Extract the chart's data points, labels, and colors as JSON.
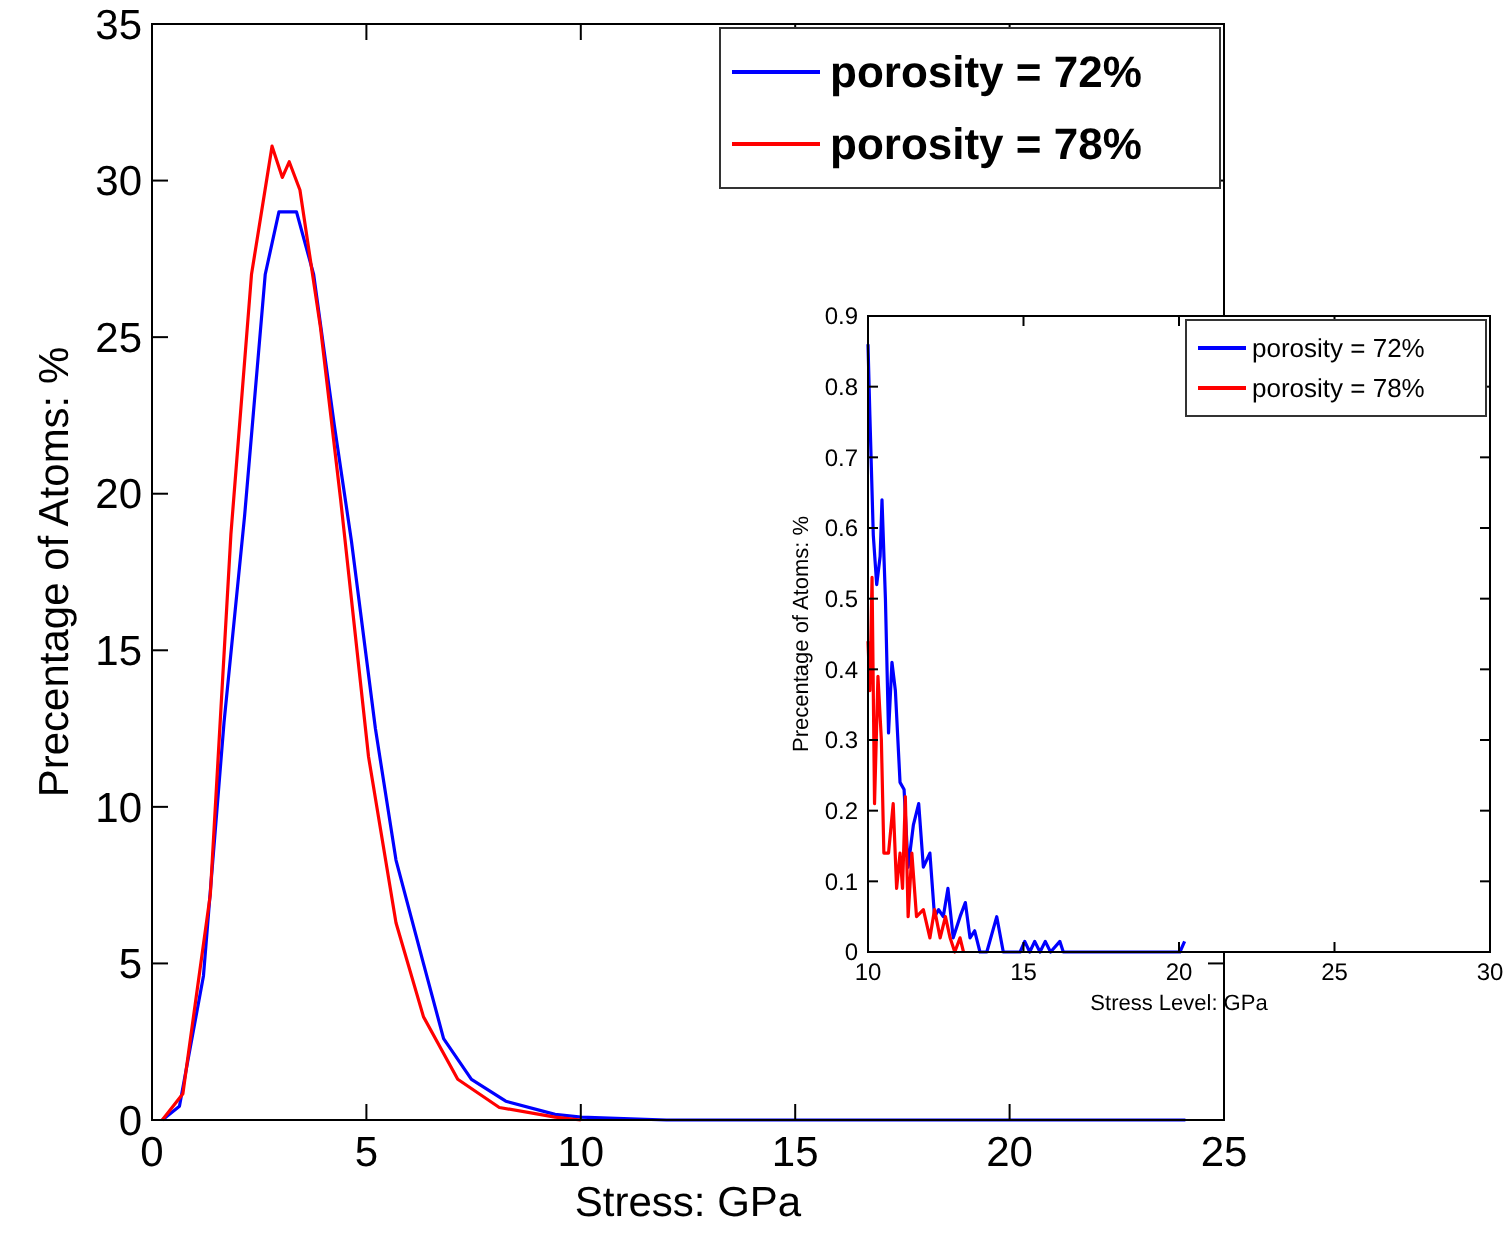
{
  "chart_data": [
    {
      "type": "line",
      "xlabel": "Stress: GPa",
      "ylabel": "Precentage of Atoms: %",
      "xlim": [
        0,
        25
      ],
      "ylim": [
        0,
        35
      ],
      "xticks": [
        0,
        5,
        10,
        15,
        20,
        25
      ],
      "yticks": [
        0,
        5,
        10,
        15,
        20,
        25,
        30,
        35
      ],
      "legend": "top right",
      "series": [
        {
          "name": "porosity = 72%",
          "color": "#0000ff",
          "x": [
            0.24,
            0.64,
            1.2,
            1.68,
            2.16,
            2.64,
            2.96,
            3.37,
            3.77,
            4.25,
            4.65,
            5.21,
            5.69,
            6.33,
            6.8,
            7.45,
            8.25,
            9.4,
            10,
            12,
            16,
            20,
            24.1
          ],
          "values": [
            0,
            0.44,
            4.6,
            12.7,
            19.3,
            27,
            29,
            29,
            27,
            22.2,
            18.5,
            12.5,
            8.3,
            5,
            2.6,
            1.3,
            0.6,
            0.18,
            0.09,
            0,
            0,
            0,
            0
          ]
        },
        {
          "name": "porosity = 78%",
          "color": "#ff0000",
          "x": [
            0.24,
            0.72,
            1.36,
            1.84,
            2.32,
            2.8,
            3.04,
            3.2,
            3.45,
            3.93,
            4.4,
            5.05,
            5.69,
            6.33,
            7.13,
            8.1,
            9.4,
            10
          ],
          "values": [
            0,
            0.84,
            7.2,
            18.7,
            27,
            31.1,
            30.1,
            30.6,
            29.7,
            25.3,
            19.8,
            11.6,
            6.3,
            3.3,
            1.3,
            0.4,
            0.09,
            0
          ]
        }
      ]
    },
    {
      "type": "line",
      "xlabel": "Stress Level: GPa",
      "ylabel": "Precentage of Atoms: %",
      "xlim": [
        10,
        30
      ],
      "ylim": [
        0,
        0.9
      ],
      "xticks": [
        10,
        15,
        20,
        25,
        30
      ],
      "yticks": [
        0,
        0.1,
        0.2,
        0.3,
        0.4,
        0.5,
        0.6,
        0.7,
        0.8,
        0.9
      ],
      "legend": "top right",
      "series": [
        {
          "name": "porosity = 72%",
          "color": "#0000ff",
          "x": [
            10,
            10.06,
            10.17,
            10.28,
            10.39,
            10.45,
            10.56,
            10.66,
            10.77,
            10.88,
            11.03,
            11.16,
            11.29,
            11.46,
            11.63,
            11.78,
            11.99,
            12.14,
            12.27,
            12.42,
            12.57,
            12.74,
            12.96,
            13.13,
            13.28,
            13.43,
            13.6,
            13.82,
            14.14,
            14.35,
            14.89,
            15.04,
            15.2,
            15.36,
            15.53,
            15.7,
            15.87,
            16.17,
            16.28,
            20.03,
            20.18
          ],
          "values": [
            0.86,
            0.76,
            0.59,
            0.52,
            0.56,
            0.64,
            0.5,
            0.31,
            0.41,
            0.37,
            0.24,
            0.23,
            0.12,
            0.18,
            0.21,
            0.12,
            0.14,
            0.05,
            0.06,
            0.05,
            0.09,
            0.02,
            0.05,
            0.07,
            0.02,
            0.03,
            0,
            0,
            0.05,
            0,
            0,
            0.015,
            0,
            0.015,
            0,
            0.015,
            0,
            0.015,
            0,
            0,
            0.015
          ]
        },
        {
          "name": "porosity = 78%",
          "color": "#ff0000",
          "x": [
            10,
            10.06,
            10.13,
            10.21,
            10.32,
            10.43,
            10.51,
            10.66,
            10.81,
            10.92,
            11.03,
            11.11,
            11.2,
            11.29,
            11.41,
            11.56,
            11.78,
            11.99,
            12.14,
            12.32,
            12.49,
            12.64,
            12.79,
            12.96,
            13.07
          ],
          "values": [
            0.44,
            0.37,
            0.53,
            0.21,
            0.39,
            0.3,
            0.14,
            0.14,
            0.21,
            0.09,
            0.14,
            0.09,
            0.22,
            0.05,
            0.14,
            0.05,
            0.06,
            0.02,
            0.06,
            0.02,
            0.05,
            0.02,
            0,
            0.02,
            0
          ]
        }
      ]
    }
  ]
}
